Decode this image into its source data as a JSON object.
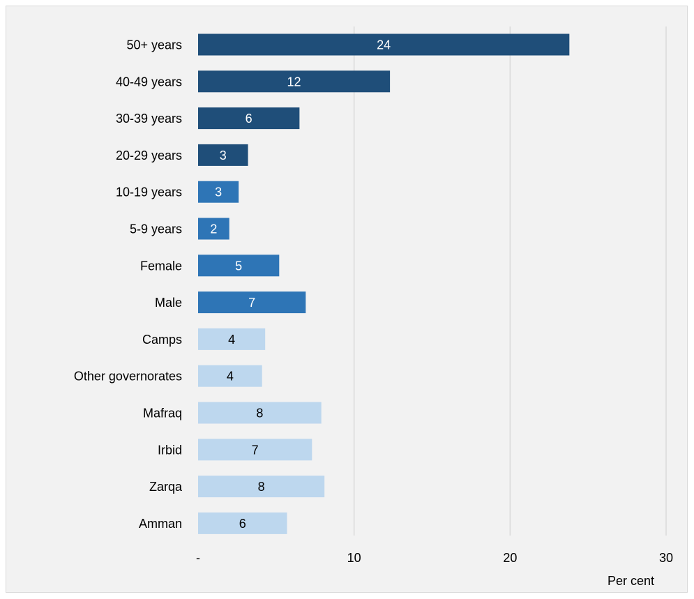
{
  "chart_data": {
    "type": "bar",
    "orientation": "horizontal",
    "title": "",
    "xlabel": "Per cent",
    "ylabel": "",
    "xlim": [
      0,
      30
    ],
    "xticks": [
      0,
      10,
      20,
      30
    ],
    "xtick_labels": [
      "-",
      "10",
      "20",
      "30"
    ],
    "grid": "vertical",
    "legend": "none",
    "categories": [
      "50+ years",
      "40-49 years",
      "30-39 years",
      "20-29 years",
      "10-19 years",
      "5-9 years",
      "Female",
      "Male",
      "Camps",
      "Other governorates",
      "Mafraq",
      "Irbid",
      "Zarqa",
      "Amman"
    ],
    "values": [
      23.8,
      12.3,
      6.5,
      3.2,
      2.6,
      2.0,
      5.2,
      6.9,
      4.3,
      4.1,
      7.9,
      7.3,
      8.1,
      5.7
    ],
    "data_labels": [
      "24",
      "12",
      "6",
      "3",
      "3",
      "2",
      "5",
      "7",
      "4",
      "4",
      "8",
      "7",
      "8",
      "6"
    ],
    "bar_colors": [
      "#1f4e79",
      "#1f4e79",
      "#1f4e79",
      "#1f4e79",
      "#2e75b6",
      "#2e75b6",
      "#2e75b6",
      "#2e75b6",
      "#bdd7ee",
      "#bdd7ee",
      "#bdd7ee",
      "#bdd7ee",
      "#bdd7ee",
      "#bdd7ee"
    ],
    "label_colors": [
      "#ffffff",
      "#ffffff",
      "#ffffff",
      "#ffffff",
      "#ffffff",
      "#ffffff",
      "#ffffff",
      "#ffffff",
      "#000000",
      "#000000",
      "#000000",
      "#000000",
      "#000000",
      "#000000"
    ]
  },
  "colors": {
    "background": "#f2f2f2",
    "gridline": "#d9d9d9",
    "border": "#d9d9d9"
  }
}
